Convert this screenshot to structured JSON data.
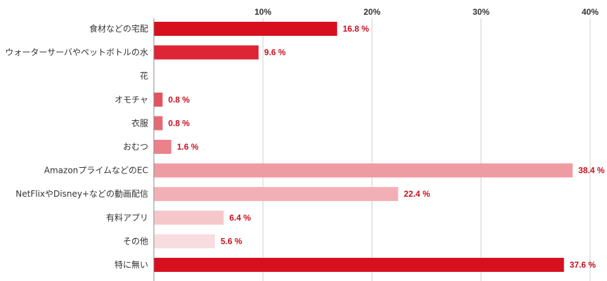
{
  "chart_data": {
    "type": "bar",
    "orientation": "horizontal",
    "categories": [
      "食材などの宅配",
      "ウォーターサーバやペットボトルの水",
      "花",
      "オモチャ",
      "衣服",
      "おむつ",
      "AmazonプライムなどのEC",
      "NetFlixやDisney+などの動画配信",
      "有料アプリ",
      "その他",
      "特に無い"
    ],
    "values": [
      16.8,
      9.6,
      0,
      0.8,
      0.8,
      1.6,
      38.4,
      22.4,
      6.4,
      5.6,
      37.6
    ],
    "value_labels": [
      "16.8 %",
      "9.6 %",
      "",
      "0.8 %",
      "0.8 %",
      "1.6 %",
      "38.4 %",
      "22.4 %",
      "6.4 %",
      "5.6 %",
      "37.6 %"
    ],
    "bar_colors": [
      "#d7101f",
      "#dd2535",
      "#e23a48",
      "#e3525f",
      "#e66a75",
      "#eb828b",
      "#ef9ba2",
      "#f2b0b6",
      "#f5c7cb",
      "#f8dde0",
      "#d7101f"
    ],
    "value_label_color": "#c8101e",
    "xlim": [
      0,
      40
    ],
    "xticks": [
      10,
      20,
      30,
      40
    ],
    "xtick_labels": [
      "10%",
      "20%",
      "30%",
      "40%"
    ],
    "tick_position": "top",
    "grid": true,
    "title": "",
    "xlabel": "",
    "ylabel": ""
  }
}
